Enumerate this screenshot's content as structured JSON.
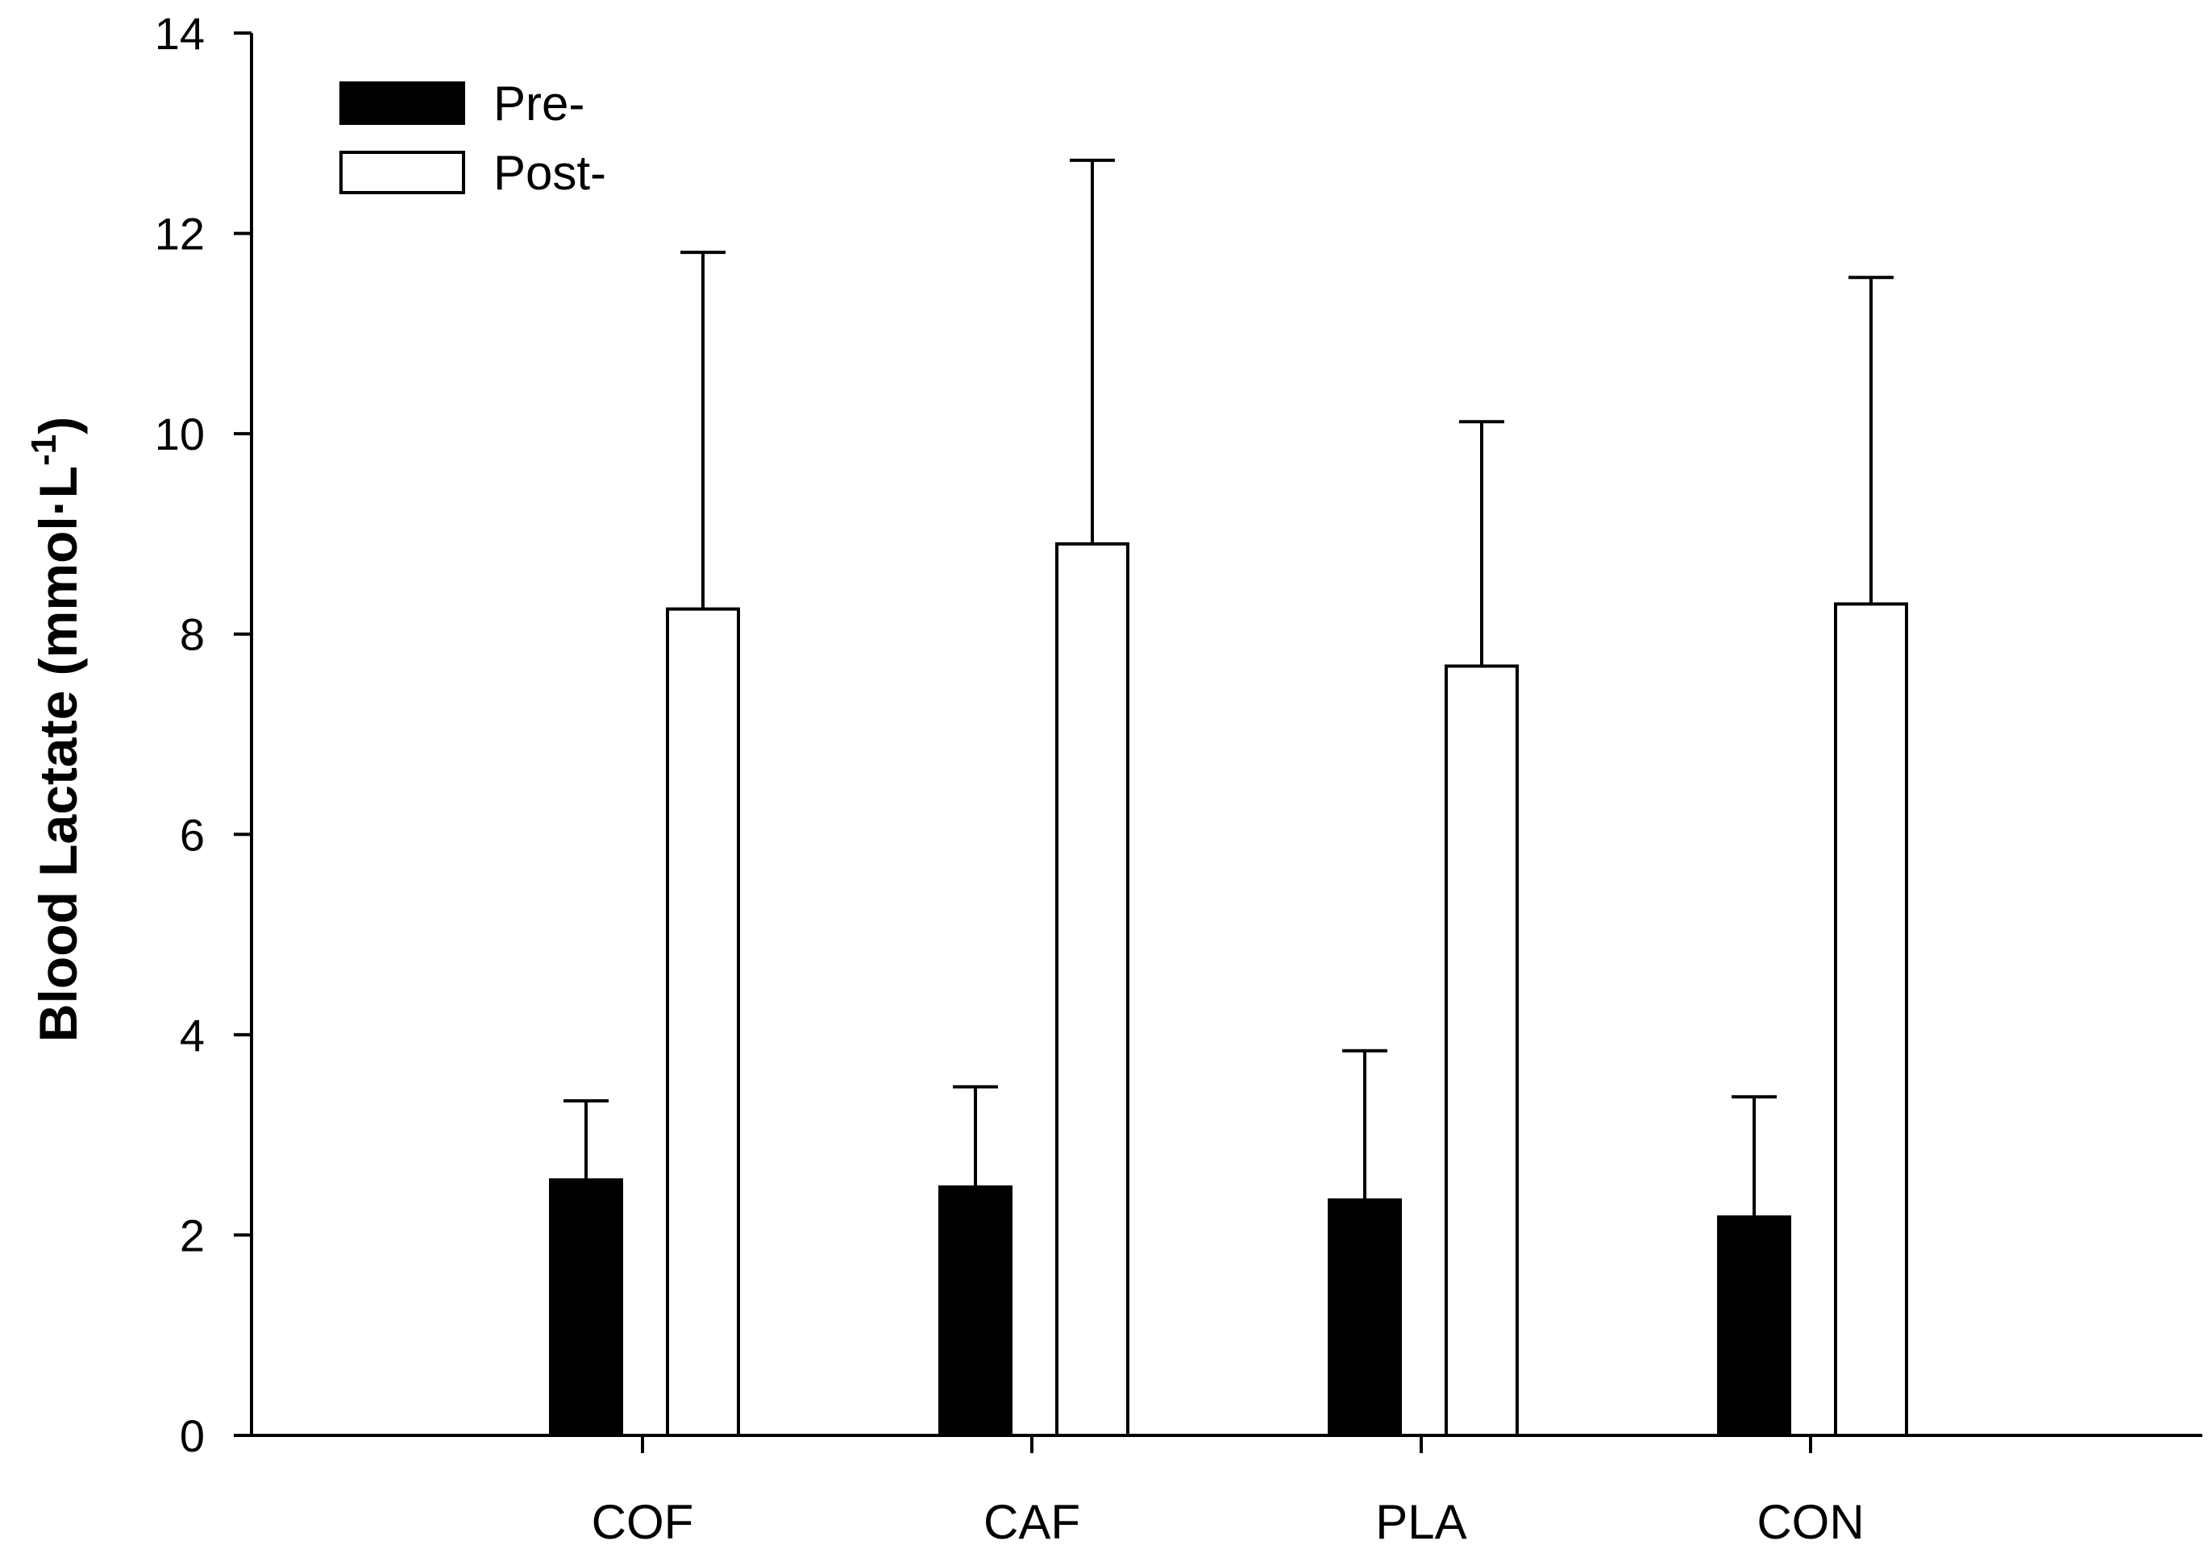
{
  "chart_data": {
    "type": "bar",
    "title": "",
    "xlabel": "",
    "ylabel": {
      "main": "Blood Lactate (mmol·L",
      "superscript": "-1",
      "close": ")"
    },
    "ylim": [
      0,
      14
    ],
    "yticks": [
      0,
      2,
      4,
      6,
      8,
      10,
      12,
      14
    ],
    "categories": [
      "COF",
      "CAF",
      "PLA",
      "CON"
    ],
    "series": [
      {
        "name": "Pre-",
        "color": "#000000",
        "values": [
          2.55,
          2.48,
          2.35,
          2.18
        ],
        "error_upper": [
          0.79,
          1.0,
          1.49,
          1.2
        ]
      },
      {
        "name": "Post-",
        "color": "#ffffff",
        "values": [
          8.25,
          8.9,
          7.68,
          8.3
        ],
        "error_upper": [
          3.56,
          3.83,
          2.44,
          3.26
        ]
      }
    ],
    "legend": {
      "placement": "top-left",
      "entries": [
        "Pre-",
        "Post-"
      ]
    },
    "grid": false
  }
}
